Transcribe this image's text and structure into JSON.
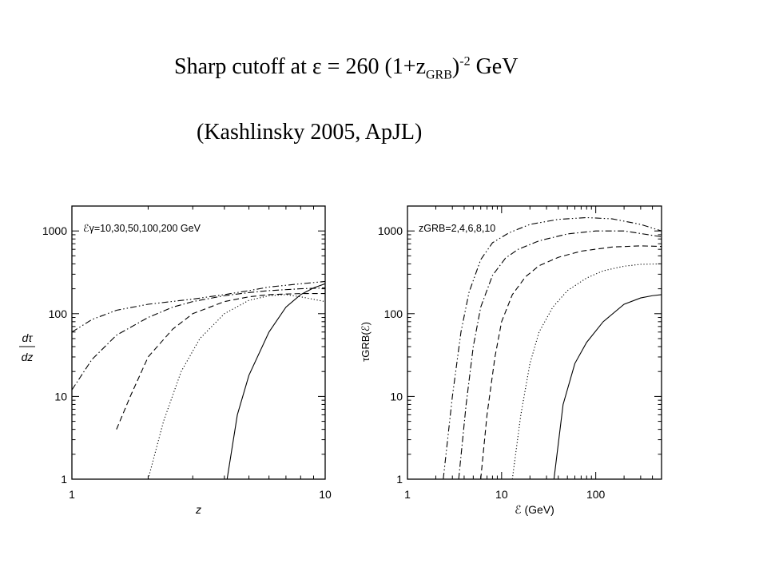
{
  "title": {
    "prefix": "Sharp cutoff at ",
    "symbol": "ε",
    "mid": " = 260 (1+z",
    "sub": "GRB",
    "close": ")",
    "sup": "-2",
    "suffix": " GeV"
  },
  "subtitle": "(Kashlinsky 2005, ApJL)",
  "chart_data": [
    {
      "type": "line",
      "xscale": "log",
      "yscale": "log",
      "xlim": [
        1,
        10
      ],
      "ylim": [
        1,
        2000
      ],
      "xlabel": "z",
      "ylabel_num": "dτ",
      "ylabel_den": "dz",
      "annotation": "ℰγ=10,30,50,100,200 GeV",
      "x_ticks": [
        "1",
        "10"
      ],
      "y_ticks": [
        "1",
        "10",
        "100",
        "1000"
      ],
      "series": [
        {
          "style": "solid",
          "x": [
            4.1,
            4.5,
            5,
            6,
            7,
            8,
            9,
            10
          ],
          "y": [
            1,
            6,
            18,
            60,
            120,
            170,
            205,
            230
          ]
        },
        {
          "style": "dotted",
          "x": [
            2,
            2.3,
            2.7,
            3.2,
            4,
            5,
            6,
            7,
            8,
            10
          ],
          "y": [
            1,
            5,
            20,
            50,
            100,
            145,
            165,
            170,
            160,
            140
          ]
        },
        {
          "style": "dashed",
          "x": [
            1.5,
            1.7,
            2,
            2.5,
            3,
            4,
            5,
            6,
            8,
            10
          ],
          "y": [
            4,
            10,
            30,
            65,
            100,
            140,
            160,
            170,
            175,
            175
          ]
        },
        {
          "style": "dash-dot",
          "x": [
            1,
            1.2,
            1.5,
            2,
            2.5,
            3,
            4,
            5,
            6,
            8,
            10
          ],
          "y": [
            12,
            28,
            55,
            90,
            120,
            140,
            165,
            180,
            190,
            200,
            205
          ]
        },
        {
          "style": "dash-dot-dot",
          "x": [
            1,
            1.2,
            1.5,
            2,
            3,
            4,
            5,
            6,
            8,
            10
          ],
          "y": [
            60,
            85,
            110,
            130,
            150,
            170,
            190,
            210,
            230,
            245
          ]
        }
      ]
    },
    {
      "type": "line",
      "xscale": "log",
      "yscale": "log",
      "xlim": [
        1,
        500
      ],
      "ylim": [
        1,
        2000
      ],
      "xlabel": "ℰ (GeV)",
      "ylabel": "τGRB(ℰ)",
      "annotation": "zGRB=2,4,6,8,10",
      "x_ticks": [
        "1",
        "10",
        "100"
      ],
      "y_ticks": [
        "1",
        "10",
        "100",
        "1000"
      ],
      "series": [
        {
          "style": "solid",
          "x": [
            36,
            45,
            60,
            80,
            120,
            200,
            300,
            400,
            500
          ],
          "y": [
            1,
            8,
            25,
            45,
            80,
            130,
            155,
            165,
            170
          ]
        },
        {
          "style": "dotted",
          "x": [
            13,
            16,
            20,
            25,
            35,
            50,
            80,
            120,
            200,
            300,
            500
          ],
          "y": [
            1,
            6,
            25,
            60,
            120,
            190,
            270,
            330,
            375,
            395,
            400
          ]
        },
        {
          "style": "dashed",
          "x": [
            6,
            7,
            8.5,
            10,
            13,
            18,
            25,
            40,
            70,
            150,
            300,
            500
          ],
          "y": [
            1,
            6,
            30,
            80,
            170,
            280,
            380,
            480,
            570,
            640,
            660,
            650
          ]
        },
        {
          "style": "dash-dot",
          "x": [
            3.5,
            4.2,
            5,
            6,
            8,
            11,
            15,
            25,
            50,
            100,
            200,
            500
          ],
          "y": [
            1,
            8,
            40,
            120,
            290,
            470,
            600,
            760,
            920,
            1000,
            1000,
            850
          ]
        },
        {
          "style": "dash-dot-dot",
          "x": [
            2.4,
            3,
            3.7,
            4.5,
            6,
            8,
            12,
            20,
            40,
            80,
            150,
            300,
            500
          ],
          "y": [
            1,
            10,
            60,
            180,
            450,
            720,
            950,
            1200,
            1380,
            1450,
            1400,
            1200,
            1000
          ]
        }
      ]
    }
  ]
}
